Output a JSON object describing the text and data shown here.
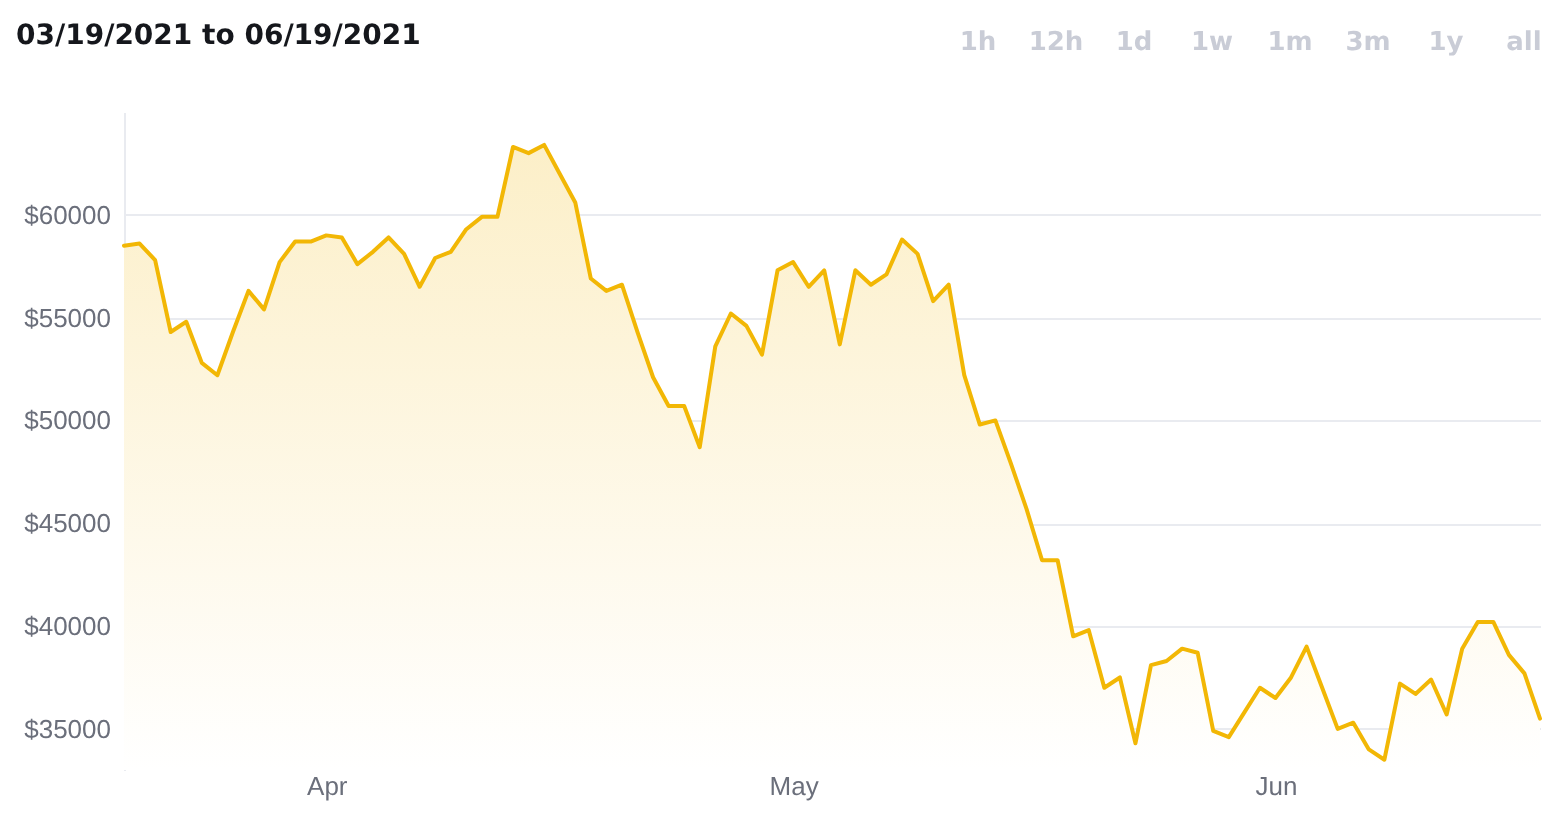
{
  "chart_data": {
    "type": "area",
    "title": "03/19/2021 to 06/19/2021",
    "annotations": [
      "1h",
      "12h",
      "1d",
      "1w",
      "1m",
      "3m",
      "1y",
      "all"
    ],
    "x": [
      "2021-03-19",
      "2021-03-20",
      "2021-03-21",
      "2021-03-22",
      "2021-03-23",
      "2021-03-24",
      "2021-03-25",
      "2021-03-26",
      "2021-03-27",
      "2021-03-28",
      "2021-03-29",
      "2021-03-30",
      "2021-03-31",
      "2021-04-01",
      "2021-04-02",
      "2021-04-03",
      "2021-04-04",
      "2021-04-05",
      "2021-04-06",
      "2021-04-07",
      "2021-04-08",
      "2021-04-09",
      "2021-04-10",
      "2021-04-11",
      "2021-04-12",
      "2021-04-13",
      "2021-04-14",
      "2021-04-15",
      "2021-04-16",
      "2021-04-17",
      "2021-04-18",
      "2021-04-19",
      "2021-04-20",
      "2021-04-21",
      "2021-04-22",
      "2021-04-23",
      "2021-04-24",
      "2021-04-25",
      "2021-04-26",
      "2021-04-27",
      "2021-04-28",
      "2021-04-29",
      "2021-04-30",
      "2021-05-01",
      "2021-05-02",
      "2021-05-03",
      "2021-05-04",
      "2021-05-05",
      "2021-05-06",
      "2021-05-07",
      "2021-05-08",
      "2021-05-09",
      "2021-05-10",
      "2021-05-11",
      "2021-05-12",
      "2021-05-13",
      "2021-05-14",
      "2021-05-15",
      "2021-05-16",
      "2021-05-17",
      "2021-05-18",
      "2021-05-19",
      "2021-05-20",
      "2021-05-21",
      "2021-05-22",
      "2021-05-23",
      "2021-05-24",
      "2021-05-25",
      "2021-05-26",
      "2021-05-27",
      "2021-05-28",
      "2021-05-29",
      "2021-05-30",
      "2021-05-31",
      "2021-06-01",
      "2021-06-02",
      "2021-06-03",
      "2021-06-04",
      "2021-06-05",
      "2021-06-06",
      "2021-06-07",
      "2021-06-08",
      "2021-06-09",
      "2021-06-10",
      "2021-06-11",
      "2021-06-12",
      "2021-06-13",
      "2021-06-14",
      "2021-06-15",
      "2021-06-16",
      "2021-06-17",
      "2021-06-18"
    ],
    "values": [
      58500,
      58600,
      57800,
      54300,
      54800,
      52800,
      52200,
      54300,
      56300,
      55400,
      57700,
      58700,
      58700,
      59000,
      58900,
      57600,
      58200,
      58900,
      58100,
      56500,
      57900,
      58200,
      59300,
      59900,
      59900,
      63300,
      63000,
      63400,
      62000,
      60600,
      56900,
      56300,
      56600,
      54300,
      52100,
      50700,
      50700,
      48700,
      53600,
      55200,
      54600,
      53200,
      57300,
      57700,
      56500,
      57300,
      53700,
      57300,
      56600,
      57100,
      58800,
      58100,
      55800,
      56600,
      52200,
      49800,
      50000,
      47900,
      45700,
      43200,
      43200,
      39500,
      39800,
      37000,
      37500,
      34300,
      38100,
      38300,
      38900,
      38700,
      34900,
      34600,
      35800,
      37000,
      36500,
      37500,
      39000,
      37000,
      35000,
      35300,
      34000,
      33500,
      37200,
      36700,
      37400,
      35700,
      38900,
      40200,
      40200,
      38600,
      37700,
      35500
    ],
    "color": "#f2b705",
    "xlim": [
      "2021-03-19",
      "2021-06-18"
    ],
    "xticks": [
      {
        "value": "2021-04-01",
        "label": "Apr"
      },
      {
        "value": "2021-05-01",
        "label": "May"
      },
      {
        "value": "2021-06-01",
        "label": "Jun"
      }
    ],
    "ylim": [
      33000,
      65000
    ],
    "yticks": [
      {
        "value": 35000,
        "label": "$35000"
      },
      {
        "value": 40000,
        "label": "$40000"
      },
      {
        "value": 45000,
        "label": "$45000"
      },
      {
        "value": 50000,
        "label": "$50000"
      },
      {
        "value": 55000,
        "label": "$55000"
      },
      {
        "value": 60000,
        "label": "$60000"
      }
    ],
    "grid": "y"
  }
}
